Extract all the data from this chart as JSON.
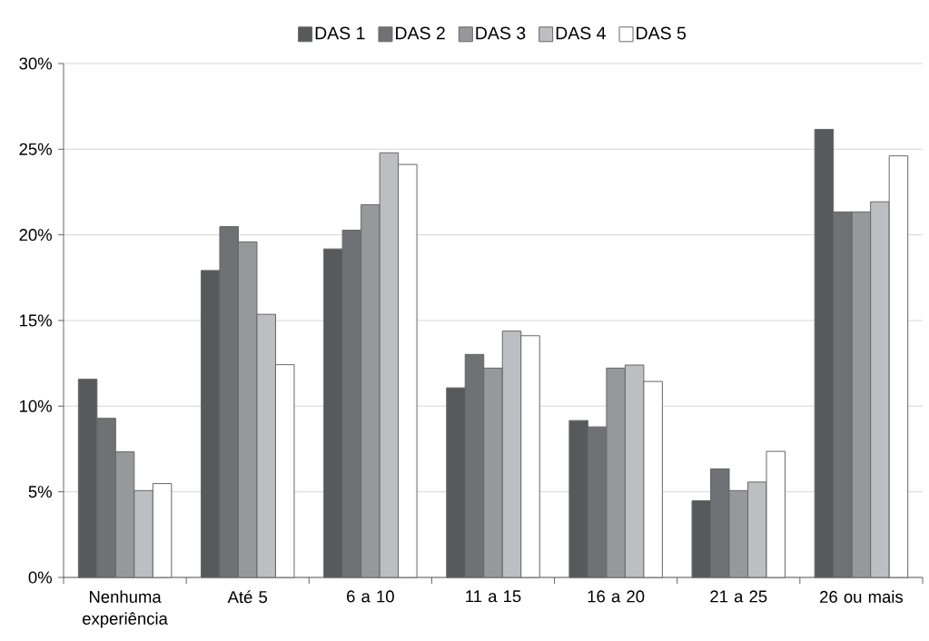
{
  "chart_data": {
    "type": "bar",
    "categories": [
      "Nenhuma experiência",
      "Até 5",
      "6 a 10",
      "11 a 15",
      "16 a 20",
      "21 a 25",
      "26 ou mais"
    ],
    "series": [
      {
        "name": "DAS 1",
        "color": "#58595b",
        "values": [
          11.57,
          17.92,
          19.18,
          11.07,
          9.16,
          4.48,
          26.16
        ]
      },
      {
        "name": "DAS 2",
        "color": "#707175",
        "values": [
          9.29,
          20.48,
          20.27,
          13.02,
          8.79,
          6.34,
          21.34
        ]
      },
      {
        "name": "DAS 3",
        "color": "#97989c",
        "values": [
          7.33,
          19.59,
          21.76,
          12.22,
          12.22,
          5.07,
          21.34
        ]
      },
      {
        "name": "DAS 4",
        "color": "#bdbec2",
        "values": [
          5.07,
          15.36,
          24.79,
          14.38,
          12.4,
          5.57,
          21.93
        ]
      },
      {
        "name": "DAS 5",
        "color": "#ffffff",
        "values": [
          5.48,
          12.42,
          24.11,
          14.11,
          11.44,
          7.36,
          24.61
        ]
      }
    ],
    "ylim": [
      0,
      30
    ],
    "yticks": [
      {
        "value": 0,
        "label": "0%"
      },
      {
        "value": 5,
        "label": "5%"
      },
      {
        "value": 10,
        "label": "10%"
      },
      {
        "value": 15,
        "label": "15%"
      },
      {
        "value": 20,
        "label": "20%"
      },
      {
        "value": 25,
        "label": "25%"
      },
      {
        "value": 30,
        "label": "30%"
      }
    ],
    "grid": "y",
    "legend": "top"
  }
}
